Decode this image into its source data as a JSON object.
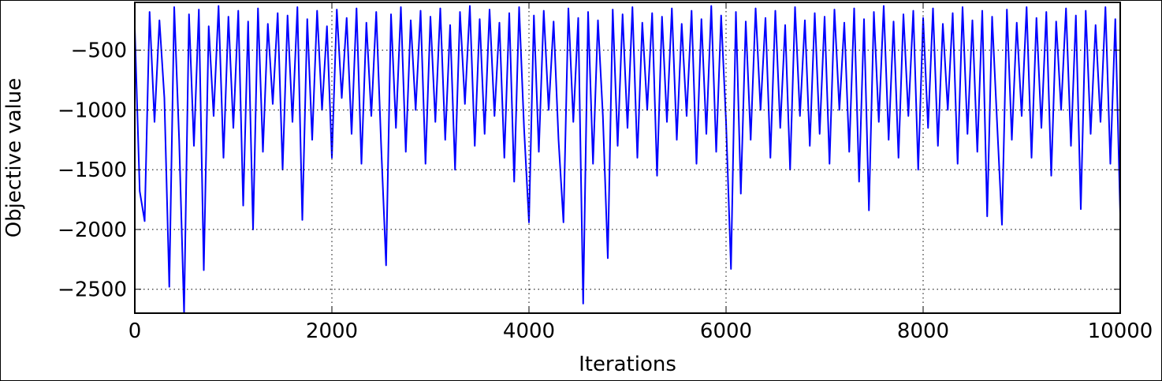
{
  "chart_data": {
    "type": "line",
    "x_label": "Iterations",
    "y_label": "Objective value",
    "color": "#0000ff",
    "grid": true,
    "xlim": [
      0,
      10000
    ],
    "ylim": [
      -2700,
      -100
    ],
    "xticks": [
      0,
      2000,
      4000,
      6000,
      8000,
      10000
    ],
    "yticks": [
      {
        "value": -2500,
        "label": "−2500"
      },
      {
        "value": -2000,
        "label": "−2000"
      },
      {
        "value": -1500,
        "label": "−1500"
      },
      {
        "value": -1000,
        "label": "−1000"
      },
      {
        "value": -500,
        "label": "−500"
      }
    ],
    "x": [
      0,
      50,
      100,
      150,
      200,
      250,
      300,
      350,
      400,
      450,
      500,
      550,
      600,
      650,
      700,
      750,
      800,
      850,
      900,
      950,
      1000,
      1050,
      1100,
      1150,
      1200,
      1250,
      1300,
      1350,
      1400,
      1450,
      1500,
      1550,
      1600,
      1650,
      1700,
      1750,
      1800,
      1850,
      1900,
      1950,
      2000,
      2050,
      2100,
      2150,
      2200,
      2250,
      2300,
      2350,
      2400,
      2450,
      2500,
      2550,
      2600,
      2650,
      2700,
      2750,
      2800,
      2850,
      2900,
      2950,
      3000,
      3050,
      3100,
      3150,
      3200,
      3250,
      3300,
      3350,
      3400,
      3450,
      3500,
      3550,
      3600,
      3650,
      3700,
      3750,
      3800,
      3850,
      3900,
      3950,
      4000,
      4050,
      4100,
      4150,
      4200,
      4250,
      4300,
      4350,
      4400,
      4450,
      4500,
      4550,
      4600,
      4650,
      4700,
      4750,
      4800,
      4850,
      4900,
      4950,
      5000,
      5050,
      5100,
      5150,
      5200,
      5250,
      5300,
      5350,
      5400,
      5450,
      5500,
      5550,
      5600,
      5650,
      5700,
      5750,
      5800,
      5850,
      5900,
      5950,
      6000,
      6050,
      6100,
      6150,
      6200,
      6250,
      6300,
      6350,
      6400,
      6450,
      6500,
      6550,
      6600,
      6650,
      6700,
      6750,
      6800,
      6850,
      6900,
      6950,
      7000,
      7050,
      7100,
      7150,
      7200,
      7250,
      7300,
      7350,
      7400,
      7450,
      7500,
      7550,
      7600,
      7650,
      7700,
      7750,
      7800,
      7850,
      7900,
      7950,
      8000,
      8050,
      8100,
      8150,
      8200,
      8250,
      8300,
      8350,
      8400,
      8450,
      8500,
      8550,
      8600,
      8650,
      8700,
      8750,
      8800,
      8850,
      8900,
      8950,
      9000,
      9050,
      9100,
      9150,
      9200,
      9250,
      9300,
      9350,
      9400,
      9450,
      9500,
      9550,
      9600,
      9650,
      9700,
      9750,
      9800,
      9850,
      9900,
      9950,
      10000
    ],
    "values": [
      -320,
      -1680,
      -1930,
      -180,
      -1100,
      -250,
      -900,
      -2480,
      -140,
      -1250,
      -2700,
      -200,
      -1300,
      -160,
      -2340,
      -300,
      -1050,
      -130,
      -1400,
      -220,
      -1150,
      -170,
      -1800,
      -260,
      -2000,
      -150,
      -1350,
      -280,
      -950,
      -190,
      -1500,
      -210,
      -1100,
      -140,
      -1920,
      -240,
      -1250,
      -170,
      -1000,
      -300,
      -1400,
      -160,
      -900,
      -230,
      -1200,
      -150,
      -1450,
      -270,
      -1050,
      -180,
      -1300,
      -2300,
      -200,
      -1150,
      -140,
      -1350,
      -250,
      -1000,
      -170,
      -1450,
      -220,
      -1100,
      -150,
      -1250,
      -290,
      -1500,
      -180,
      -950,
      -130,
      -1300,
      -240,
      -1200,
      -160,
      -1050,
      -270,
      -1400,
      -190,
      -1600,
      -140,
      -1150,
      -1940,
      -210,
      -1350,
      -170,
      -1000,
      -260,
      -1250,
      -1940,
      -150,
      -1100,
      -230,
      -2620,
      -180,
      -1450,
      -250,
      -1050,
      -2240,
      -160,
      -1300,
      -200,
      -1150,
      -140,
      -1400,
      -270,
      -1000,
      -190,
      -1550,
      -220,
      -1100,
      -150,
      -1250,
      -280,
      -1050,
      -170,
      -1450,
      -240,
      -1200,
      -130,
      -1350,
      -210,
      -1100,
      -2330,
      -180,
      -1700,
      -260,
      -1250,
      -150,
      -1000,
      -230,
      -1400,
      -170,
      -1150,
      -290,
      -1500,
      -140,
      -1050,
      -250,
      -1300,
      -190,
      -1200,
      -220,
      -1450,
      -160,
      -1000,
      -270,
      -1350,
      -150,
      -1600,
      -240,
      -1840,
      -180,
      -1100,
      -130,
      -1250,
      -260,
      -1400,
      -200,
      -1050,
      -170,
      -1500,
      -230,
      -1150,
      -150,
      -1300,
      -280,
      -1000,
      -190,
      -1450,
      -140,
      -1200,
      -250,
      -1350,
      -170,
      -1890,
      -220,
      -1100,
      -1960,
      -160,
      -1250,
      -270,
      -1050,
      -140,
      -1400,
      -230,
      -1150,
      -180,
      -1550,
      -260,
      -1000,
      -150,
      -1300,
      -210,
      -1830,
      -170,
      -1200,
      -290,
      -1100,
      -140,
      -1450,
      -240,
      -1870
    ]
  }
}
